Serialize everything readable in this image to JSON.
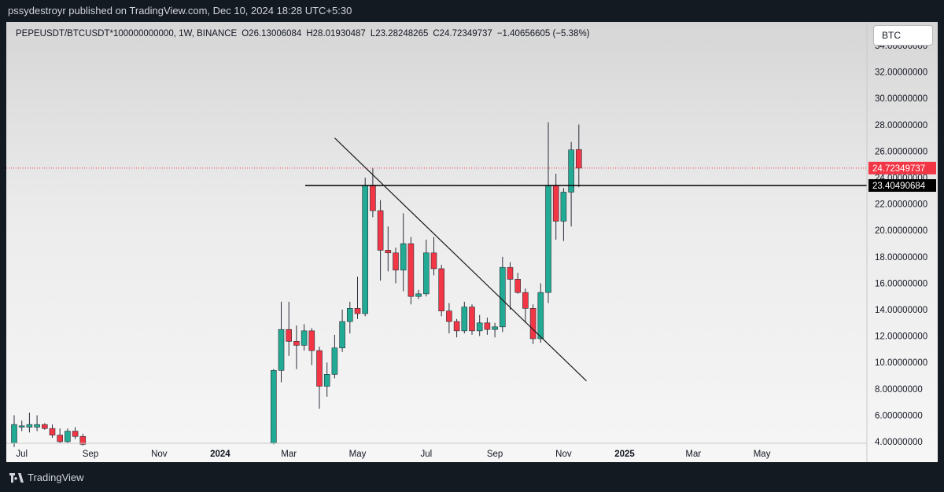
{
  "header": {
    "published_line": "pssydestroyr published on TradingView.com, Dec 10, 2024 18:28 UTC+5:30"
  },
  "legend": {
    "symbol": "PEPEUSDT/BTCUSDT*100000000000, 1W, BINANCE",
    "open": "O26.13006084",
    "high": "H28.01930487",
    "low": "L23.28248265",
    "close": "C24.72349737",
    "change": "−1.40656605 (−5.38%)"
  },
  "currency_button": "BTC",
  "footer": {
    "brand": "TradingView"
  },
  "colors": {
    "up": "#22ab94",
    "down": "#f23645",
    "current_price": "#f23645",
    "level_line": "#000000"
  },
  "chart_data": {
    "type": "candlestick",
    "y_axis": {
      "ylim": [
        4,
        34
      ],
      "tick_values": [
        4,
        6,
        8,
        10,
        12,
        14,
        16,
        18,
        20,
        22,
        24,
        26,
        28,
        30,
        32,
        34
      ],
      "tick_labels": [
        "4.00000000",
        "6.00000000",
        "8.00000000",
        "10.00000000",
        "12.00000000",
        "14.00000000",
        "16.00000000",
        "18.00000000",
        "20.00000000",
        "22.00000000",
        "24.00000000",
        "26.00000000",
        "28.00000000",
        "30.00000000",
        "32.00000000",
        "34.00000000"
      ]
    },
    "x_axis": {
      "labels": [
        "Jul",
        "Sep",
        "Nov",
        "2024",
        "Mar",
        "May",
        "Jul",
        "Sep",
        "Nov",
        "2025",
        "Mar",
        "May"
      ],
      "label_weeks": [
        1,
        10,
        19,
        27,
        36,
        45,
        54,
        63,
        72,
        80,
        89,
        98
      ]
    },
    "candles": [
      {
        "w": 0,
        "o": 3.9,
        "h": 6.0,
        "l": 3.6,
        "c": 5.3
      },
      {
        "w": 1,
        "o": 5.1,
        "h": 5.6,
        "l": 4.8,
        "c": 5.2
      },
      {
        "w": 2,
        "o": 5.1,
        "h": 6.2,
        "l": 4.7,
        "c": 5.3
      },
      {
        "w": 3,
        "o": 5.1,
        "h": 6.0,
        "l": 4.8,
        "c": 5.3
      },
      {
        "w": 4,
        "o": 5.3,
        "h": 5.4,
        "l": 4.9,
        "c": 5.0
      },
      {
        "w": 5,
        "o": 5.0,
        "h": 5.3,
        "l": 4.3,
        "c": 4.5
      },
      {
        "w": 6,
        "o": 4.5,
        "h": 5.0,
        "l": 3.9,
        "c": 4.0
      },
      {
        "w": 7,
        "o": 4.0,
        "h": 5.0,
        "l": 3.9,
        "c": 4.8
      },
      {
        "w": 8,
        "o": 4.8,
        "h": 5.1,
        "l": 4.2,
        "c": 4.4
      },
      {
        "w": 9,
        "o": 4.4,
        "h": 4.6,
        "l": 3.7,
        "c": 3.8
      },
      {
        "w": 34,
        "o": 3.9,
        "h": 9.5,
        "l": 3.8,
        "c": 9.4
      },
      {
        "w": 35,
        "o": 9.4,
        "h": 14.6,
        "l": 8.5,
        "c": 12.5
      },
      {
        "w": 36,
        "o": 12.5,
        "h": 14.6,
        "l": 10.5,
        "c": 11.6
      },
      {
        "w": 37,
        "o": 11.6,
        "h": 12.8,
        "l": 9.5,
        "c": 11.3
      },
      {
        "w": 38,
        "o": 11.3,
        "h": 12.9,
        "l": 10.9,
        "c": 12.4
      },
      {
        "w": 39,
        "o": 12.4,
        "h": 12.6,
        "l": 9.8,
        "c": 10.9
      },
      {
        "w": 40,
        "o": 10.9,
        "h": 11.2,
        "l": 6.5,
        "c": 8.2
      },
      {
        "w": 41,
        "o": 8.2,
        "h": 10.0,
        "l": 7.4,
        "c": 9.1
      },
      {
        "w": 42,
        "o": 9.1,
        "h": 12.1,
        "l": 8.8,
        "c": 11.1
      },
      {
        "w": 43,
        "o": 11.1,
        "h": 14.0,
        "l": 10.8,
        "c": 13.1
      },
      {
        "w": 44,
        "o": 13.1,
        "h": 14.6,
        "l": 12.2,
        "c": 14.1
      },
      {
        "w": 45,
        "o": 14.1,
        "h": 16.5,
        "l": 13.3,
        "c": 13.7
      },
      {
        "w": 46,
        "o": 13.7,
        "h": 24.0,
        "l": 13.5,
        "c": 23.4
      },
      {
        "w": 47,
        "o": 23.4,
        "h": 24.7,
        "l": 21.0,
        "c": 21.5
      },
      {
        "w": 48,
        "o": 21.5,
        "h": 22.3,
        "l": 16.2,
        "c": 18.5
      },
      {
        "w": 49,
        "o": 18.5,
        "h": 20.3,
        "l": 16.9,
        "c": 18.3
      },
      {
        "w": 50,
        "o": 18.3,
        "h": 18.7,
        "l": 16.0,
        "c": 17.0
      },
      {
        "w": 51,
        "o": 17.0,
        "h": 21.3,
        "l": 15.4,
        "c": 19.0
      },
      {
        "w": 52,
        "o": 19.0,
        "h": 19.5,
        "l": 14.4,
        "c": 15.0
      },
      {
        "w": 53,
        "o": 15.0,
        "h": 15.5,
        "l": 14.8,
        "c": 15.2
      },
      {
        "w": 54,
        "o": 15.2,
        "h": 19.3,
        "l": 15.0,
        "c": 18.3
      },
      {
        "w": 55,
        "o": 18.3,
        "h": 19.5,
        "l": 16.6,
        "c": 17.1
      },
      {
        "w": 56,
        "o": 17.1,
        "h": 17.4,
        "l": 13.5,
        "c": 13.9
      },
      {
        "w": 57,
        "o": 13.9,
        "h": 14.5,
        "l": 12.2,
        "c": 13.1
      },
      {
        "w": 58,
        "o": 13.1,
        "h": 13.3,
        "l": 11.9,
        "c": 12.4
      },
      {
        "w": 59,
        "o": 12.4,
        "h": 14.6,
        "l": 12.2,
        "c": 14.2
      },
      {
        "w": 60,
        "o": 14.2,
        "h": 14.4,
        "l": 12.1,
        "c": 12.4
      },
      {
        "w": 61,
        "o": 12.4,
        "h": 13.6,
        "l": 12.0,
        "c": 13.0
      },
      {
        "w": 62,
        "o": 13.0,
        "h": 13.4,
        "l": 12.1,
        "c": 12.5
      },
      {
        "w": 63,
        "o": 12.5,
        "h": 13.0,
        "l": 11.9,
        "c": 12.7
      },
      {
        "w": 64,
        "o": 12.7,
        "h": 18.0,
        "l": 12.3,
        "c": 17.2
      },
      {
        "w": 65,
        "o": 17.2,
        "h": 17.6,
        "l": 14.0,
        "c": 16.3
      },
      {
        "w": 66,
        "o": 16.3,
        "h": 16.8,
        "l": 15.2,
        "c": 15.3
      },
      {
        "w": 67,
        "o": 15.3,
        "h": 15.6,
        "l": 13.0,
        "c": 14.1
      },
      {
        "w": 68,
        "o": 14.1,
        "h": 14.4,
        "l": 11.4,
        "c": 11.8
      },
      {
        "w": 69,
        "o": 11.8,
        "h": 16.0,
        "l": 11.5,
        "c": 15.3
      },
      {
        "w": 70,
        "o": 15.3,
        "h": 28.2,
        "l": 14.5,
        "c": 23.4
      },
      {
        "w": 71,
        "o": 23.4,
        "h": 24.3,
        "l": 19.3,
        "c": 20.7
      },
      {
        "w": 72,
        "o": 20.7,
        "h": 23.2,
        "l": 19.2,
        "c": 22.9
      },
      {
        "w": 73,
        "o": 22.9,
        "h": 26.7,
        "l": 20.3,
        "c": 26.1
      },
      {
        "w": 74,
        "o": 26.13,
        "h": 28.02,
        "l": 23.28,
        "c": 24.72
      }
    ],
    "horizontal_levels": [
      {
        "value": 23.40490684,
        "label": "23.40490684",
        "style": "solid"
      },
      {
        "value": 24.72349737,
        "label": "24.72349737",
        "style": "dotted",
        "current": true
      }
    ],
    "trendline": {
      "from": {
        "w": 42,
        "v": 27.0
      },
      "to": {
        "w": 75,
        "v": 8.6
      }
    }
  }
}
